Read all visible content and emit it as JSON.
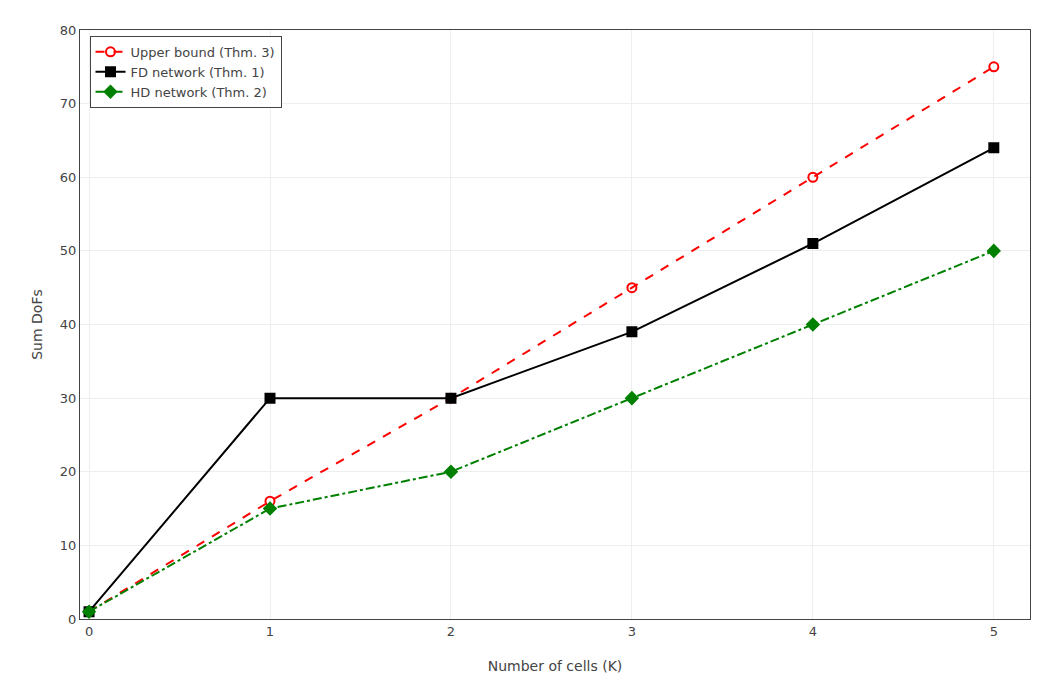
{
  "chart_data": {
    "type": "line",
    "xlabel": "Number of cells (K)",
    "ylabel": "Sum DoFs",
    "x": [
      0,
      1,
      2,
      3,
      4,
      5
    ],
    "xlim": [
      -0.05,
      5.2
    ],
    "ylim": [
      0,
      80
    ],
    "xticks": [
      0,
      1,
      2,
      3,
      4,
      5
    ],
    "yticks": [
      0,
      10,
      20,
      30,
      40,
      50,
      60,
      70,
      80
    ],
    "grid": true,
    "legend": "upper left",
    "series": [
      {
        "name": "Upper bound (Thm. 3)",
        "color": "red",
        "values": [
          1,
          16,
          30,
          45,
          60,
          75
        ],
        "marker": "circle-open",
        "line_style": "dash"
      },
      {
        "name": "FD network (Thm. 1)",
        "color": "black",
        "values": [
          1,
          30,
          30,
          39,
          51,
          64
        ],
        "marker": "square",
        "line_style": "solid"
      },
      {
        "name": "HD network (Thm. 2)",
        "color": "#008000",
        "values": [
          1,
          15,
          20,
          30,
          40,
          50
        ],
        "marker": "diamond",
        "line_style": "dashdot"
      }
    ]
  }
}
